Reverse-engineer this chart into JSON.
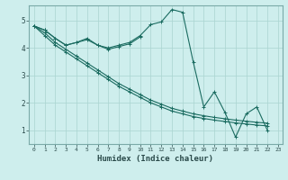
{
  "xlabel": "Humidex (Indice chaleur)",
  "bg_color": "#ceeeed",
  "line_color": "#1a6b60",
  "grid_color": "#aad4d0",
  "axis_color": "#7aaaa8",
  "tick_color": "#2a4a4a",
  "xlim": [
    -0.5,
    23.4
  ],
  "ylim": [
    0.5,
    5.55
  ],
  "yticks": [
    1,
    2,
    3,
    4,
    5
  ],
  "xticks": [
    0,
    1,
    2,
    3,
    4,
    5,
    6,
    7,
    8,
    9,
    10,
    11,
    12,
    13,
    14,
    15,
    16,
    17,
    18,
    19,
    20,
    21,
    22,
    23
  ],
  "series": [
    [
      4.8,
      4.65,
      4.35,
      4.1,
      4.2,
      4.35,
      4.1,
      4.0,
      4.1,
      4.2,
      4.45,
      4.85,
      4.95,
      5.4,
      5.3,
      3.5,
      1.85,
      2.4,
      1.65,
      0.75,
      1.6,
      1.85,
      1.0,
      null
    ],
    [
      4.8,
      4.65,
      4.35,
      4.1,
      4.2,
      4.3,
      4.1,
      3.95,
      4.05,
      4.15,
      4.4,
      null,
      null,
      null,
      null,
      null,
      null,
      null,
      null,
      null,
      null,
      null,
      null,
      null
    ],
    [
      4.8,
      4.45,
      4.1,
      3.85,
      3.6,
      3.35,
      3.1,
      2.85,
      2.6,
      2.4,
      2.2,
      2.0,
      1.85,
      1.7,
      1.6,
      1.5,
      1.43,
      1.37,
      1.32,
      1.27,
      1.23,
      1.19,
      1.16,
      null
    ],
    [
      4.8,
      4.55,
      4.2,
      3.95,
      3.7,
      3.45,
      3.2,
      2.95,
      2.7,
      2.5,
      2.3,
      2.1,
      1.95,
      1.8,
      1.7,
      1.6,
      1.53,
      1.47,
      1.42,
      1.37,
      1.33,
      1.29,
      1.26,
      null
    ]
  ]
}
